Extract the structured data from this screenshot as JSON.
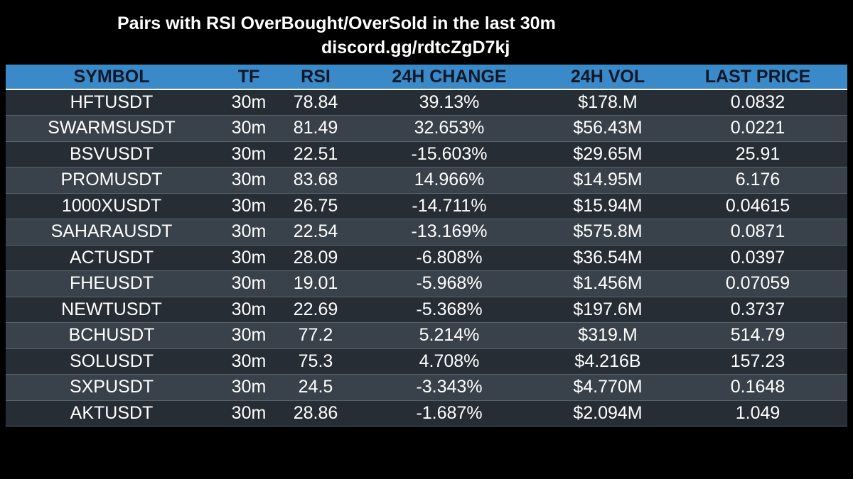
{
  "header": {
    "title": "Pairs with RSI OverBought/OverSold in the last 30m",
    "subtitle": "discord.gg/rdtcZgD7kj"
  },
  "table": {
    "columns": [
      "SYMBOL",
      "TF",
      "RSI",
      "24H CHANGE",
      "24H VOL",
      "LAST PRICE"
    ],
    "rows": [
      [
        "HFTUSDT",
        "30m",
        "78.84",
        "39.13%",
        "$178.M",
        "0.0832"
      ],
      [
        "SWARMSUSDT",
        "30m",
        "81.49",
        "32.653%",
        "$56.43M",
        "0.0221"
      ],
      [
        "BSVUSDT",
        "30m",
        "22.51",
        "-15.603%",
        "$29.65M",
        "25.91"
      ],
      [
        "PROMUSDT",
        "30m",
        "83.68",
        "14.966%",
        "$14.95M",
        "6.176"
      ],
      [
        "1000XUSDT",
        "30m",
        "26.75",
        "-14.711%",
        "$15.94M",
        "0.04615"
      ],
      [
        "SAHARAUSDT",
        "30m",
        "22.54",
        "-13.169%",
        "$575.8M",
        "0.0871"
      ],
      [
        "ACTUSDT",
        "30m",
        "28.09",
        "-6.808%",
        "$36.54M",
        "0.0397"
      ],
      [
        "FHEUSDT",
        "30m",
        "19.01",
        "-5.968%",
        "$1.456M",
        "0.07059"
      ],
      [
        "NEWTUSDT",
        "30m",
        "22.69",
        "-5.368%",
        "$197.6M",
        "0.3737"
      ],
      [
        "BCHUSDT",
        "30m",
        "77.2",
        "5.214%",
        "$319.M",
        "514.79"
      ],
      [
        "SOLUSDT",
        "30m",
        "75.3",
        "4.708%",
        "$4.216B",
        "157.23"
      ],
      [
        "SXPUSDT",
        "30m",
        "24.5",
        "-3.343%",
        "$4.770M",
        "0.1648"
      ],
      [
        "AKTUSDT",
        "30m",
        "28.86",
        "-1.687%",
        "$2.094M",
        "1.049"
      ]
    ]
  },
  "colors": {
    "background": "#000000",
    "header_row": "#3a89c9",
    "header_text": "#111827",
    "row_dark": "#262d35",
    "row_light": "#39424b",
    "text": "#ffffff"
  }
}
